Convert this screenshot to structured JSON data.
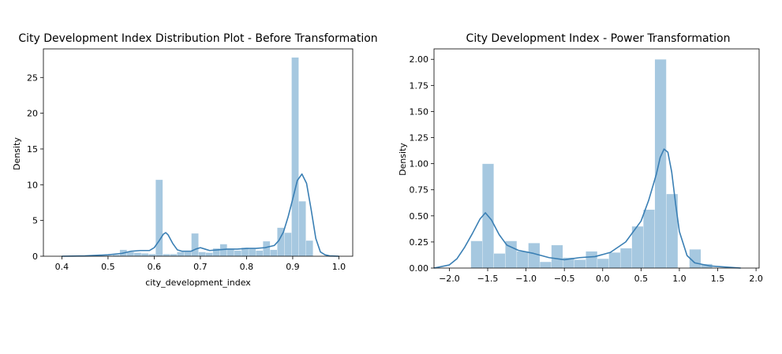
{
  "chart_data": [
    {
      "type": "bar",
      "title": "City Development Index Distribution Plot - Before Transformation",
      "xlabel": "city_development_index",
      "ylabel": "Density",
      "xlim": [
        0.36,
        1.03
      ],
      "ylim": [
        0,
        29
      ],
      "xticks": [
        0.4,
        0.5,
        0.6,
        0.7,
        0.8,
        0.9,
        1.0
      ],
      "xtick_labels": [
        "0.4",
        "0.5",
        "0.6",
        "0.7",
        "0.8",
        "0.9",
        "1.0"
      ],
      "yticks": [
        0,
        5,
        10,
        15,
        20,
        25
      ],
      "ytick_labels": [
        "0",
        "5",
        "10",
        "15",
        "20",
        "25"
      ],
      "bar_color": "#a6c8e0",
      "line_color": "#3a7fb4",
      "grid": false,
      "hist": {
        "bin_edges": [
          0.448,
          0.4635,
          0.479,
          0.4945,
          0.51,
          0.5255,
          0.541,
          0.5565,
          0.572,
          0.5875,
          0.603,
          0.6185,
          0.634,
          0.6495,
          0.665,
          0.6805,
          0.696,
          0.7115,
          0.727,
          0.7425,
          0.758,
          0.7735,
          0.789,
          0.8045,
          0.82,
          0.8355,
          0.851,
          0.8665,
          0.882,
          0.8975,
          0.913,
          0.9285,
          0.944
        ],
        "values": [
          0.1,
          0.1,
          0.1,
          0.1,
          0.2,
          0.9,
          0.6,
          0.5,
          0.4,
          0.3,
          10.7,
          0.3,
          0.3,
          0.6,
          0.6,
          3.2,
          0.6,
          0.5,
          1.1,
          1.7,
          1.0,
          0.8,
          1.2,
          1.0,
          0.8,
          2.1,
          0.9,
          4.0,
          3.3,
          27.8,
          7.7,
          2.2
        ]
      },
      "kde": {
        "x": [
          0.4,
          0.45,
          0.5,
          0.53,
          0.55,
          0.57,
          0.59,
          0.6,
          0.61,
          0.62,
          0.625,
          0.63,
          0.64,
          0.65,
          0.66,
          0.68,
          0.69,
          0.7,
          0.71,
          0.72,
          0.74,
          0.76,
          0.78,
          0.8,
          0.82,
          0.84,
          0.86,
          0.87,
          0.88,
          0.89,
          0.9,
          0.91,
          0.92,
          0.93,
          0.94,
          0.95,
          0.96,
          0.97,
          0.98,
          1.0
        ],
        "y": [
          0.0,
          0.05,
          0.2,
          0.4,
          0.7,
          0.8,
          0.8,
          1.2,
          2.1,
          3.1,
          3.3,
          3.0,
          1.8,
          0.9,
          0.7,
          0.7,
          1.0,
          1.2,
          1.0,
          0.8,
          0.9,
          1.0,
          1.0,
          1.1,
          1.1,
          1.2,
          1.5,
          2.2,
          3.4,
          5.5,
          8.0,
          10.6,
          11.5,
          10.2,
          6.5,
          2.5,
          0.6,
          0.2,
          0.05,
          0.0
        ]
      }
    },
    {
      "type": "bar",
      "title": "City Development Index - Power Transformation",
      "xlabel": "",
      "ylabel": "Density",
      "xlim": [
        -2.2,
        2.04
      ],
      "ylim": [
        0,
        2.1
      ],
      "xticks": [
        -2.0,
        -1.5,
        -1.0,
        -0.5,
        0.0,
        0.5,
        1.0,
        1.5,
        2.0
      ],
      "xtick_labels": [
        "−2.0",
        "−1.5",
        "−1.0",
        "−0.5",
        "0.0",
        "0.5",
        "1.0",
        "1.5",
        "2.0"
      ],
      "yticks": [
        0.0,
        0.25,
        0.5,
        0.75,
        1.0,
        1.25,
        1.5,
        1.75,
        2.0
      ],
      "ytick_labels": [
        "0.00",
        "0.25",
        "0.50",
        "0.75",
        "1.00",
        "1.25",
        "1.50",
        "1.75",
        "2.00"
      ],
      "bar_color": "#a6c8e0",
      "line_color": "#3a7fb4",
      "grid": false,
      "hist": {
        "bin_edges": [
          -1.72,
          -1.57,
          -1.42,
          -1.27,
          -1.12,
          -0.97,
          -0.82,
          -0.67,
          -0.52,
          -0.37,
          -0.22,
          -0.07,
          0.08,
          0.23,
          0.38,
          0.53,
          0.68,
          0.83,
          0.98,
          1.13,
          1.28,
          1.43
        ],
        "values": [
          0.26,
          1.0,
          0.14,
          0.26,
          0.16,
          0.24,
          0.06,
          0.22,
          0.1,
          0.08,
          0.16,
          0.09,
          0.15,
          0.19,
          0.4,
          0.56,
          2.0,
          0.71,
          0.0,
          0.18,
          0.04
        ]
      },
      "kde": {
        "x": [
          -2.2,
          -2.0,
          -1.9,
          -1.8,
          -1.7,
          -1.6,
          -1.53,
          -1.45,
          -1.35,
          -1.25,
          -1.1,
          -0.9,
          -0.7,
          -0.5,
          -0.3,
          -0.1,
          0.1,
          0.3,
          0.5,
          0.6,
          0.7,
          0.75,
          0.8,
          0.85,
          0.9,
          0.95,
          1.0,
          1.1,
          1.2,
          1.4,
          1.6,
          1.8
        ],
        "y": [
          0.0,
          0.03,
          0.09,
          0.2,
          0.33,
          0.47,
          0.53,
          0.46,
          0.32,
          0.22,
          0.17,
          0.14,
          0.1,
          0.08,
          0.1,
          0.11,
          0.15,
          0.25,
          0.45,
          0.65,
          0.9,
          1.06,
          1.14,
          1.11,
          0.92,
          0.62,
          0.35,
          0.12,
          0.05,
          0.02,
          0.01,
          0.0
        ]
      }
    }
  ]
}
